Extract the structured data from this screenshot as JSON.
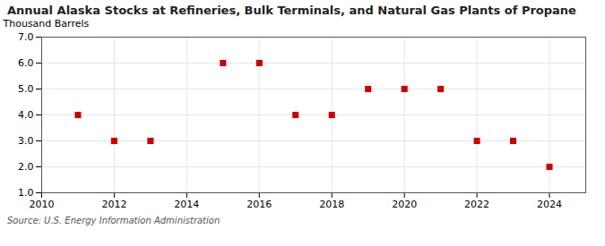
{
  "chart_data": {
    "type": "scatter",
    "title": "Annual Alaska Stocks at Refineries, Bulk Terminals, and Natural Gas Plants of Propane",
    "ylabel": "Thousand Barrels",
    "source": "Source: U.S. Energy Information Administration",
    "x": [
      2011,
      2012,
      2013,
      2015,
      2016,
      2017,
      2018,
      2019,
      2020,
      2021,
      2022,
      2023,
      2024
    ],
    "y": [
      4.0,
      3.0,
      3.0,
      6.0,
      6.0,
      4.0,
      4.0,
      5.0,
      5.0,
      5.0,
      3.0,
      3.0,
      2.0
    ],
    "color": "#cc0000",
    "marker": "square",
    "xlim": [
      2010,
      2025
    ],
    "ylim": [
      1.0,
      7.0
    ],
    "xticks": [
      2010,
      2012,
      2014,
      2016,
      2018,
      2020,
      2022,
      2024
    ],
    "yticks": [
      {
        "value": 1.0,
        "label": "1.0"
      },
      {
        "value": 2.0,
        "label": "2.0"
      },
      {
        "value": 3.0,
        "label": "3.0"
      },
      {
        "value": 4.0,
        "label": "4.0"
      },
      {
        "value": 5.0,
        "label": "5.0"
      },
      {
        "value": 6.0,
        "label": "6.0"
      },
      {
        "value": 7.0,
        "label": "7.0"
      }
    ],
    "grid": true
  }
}
